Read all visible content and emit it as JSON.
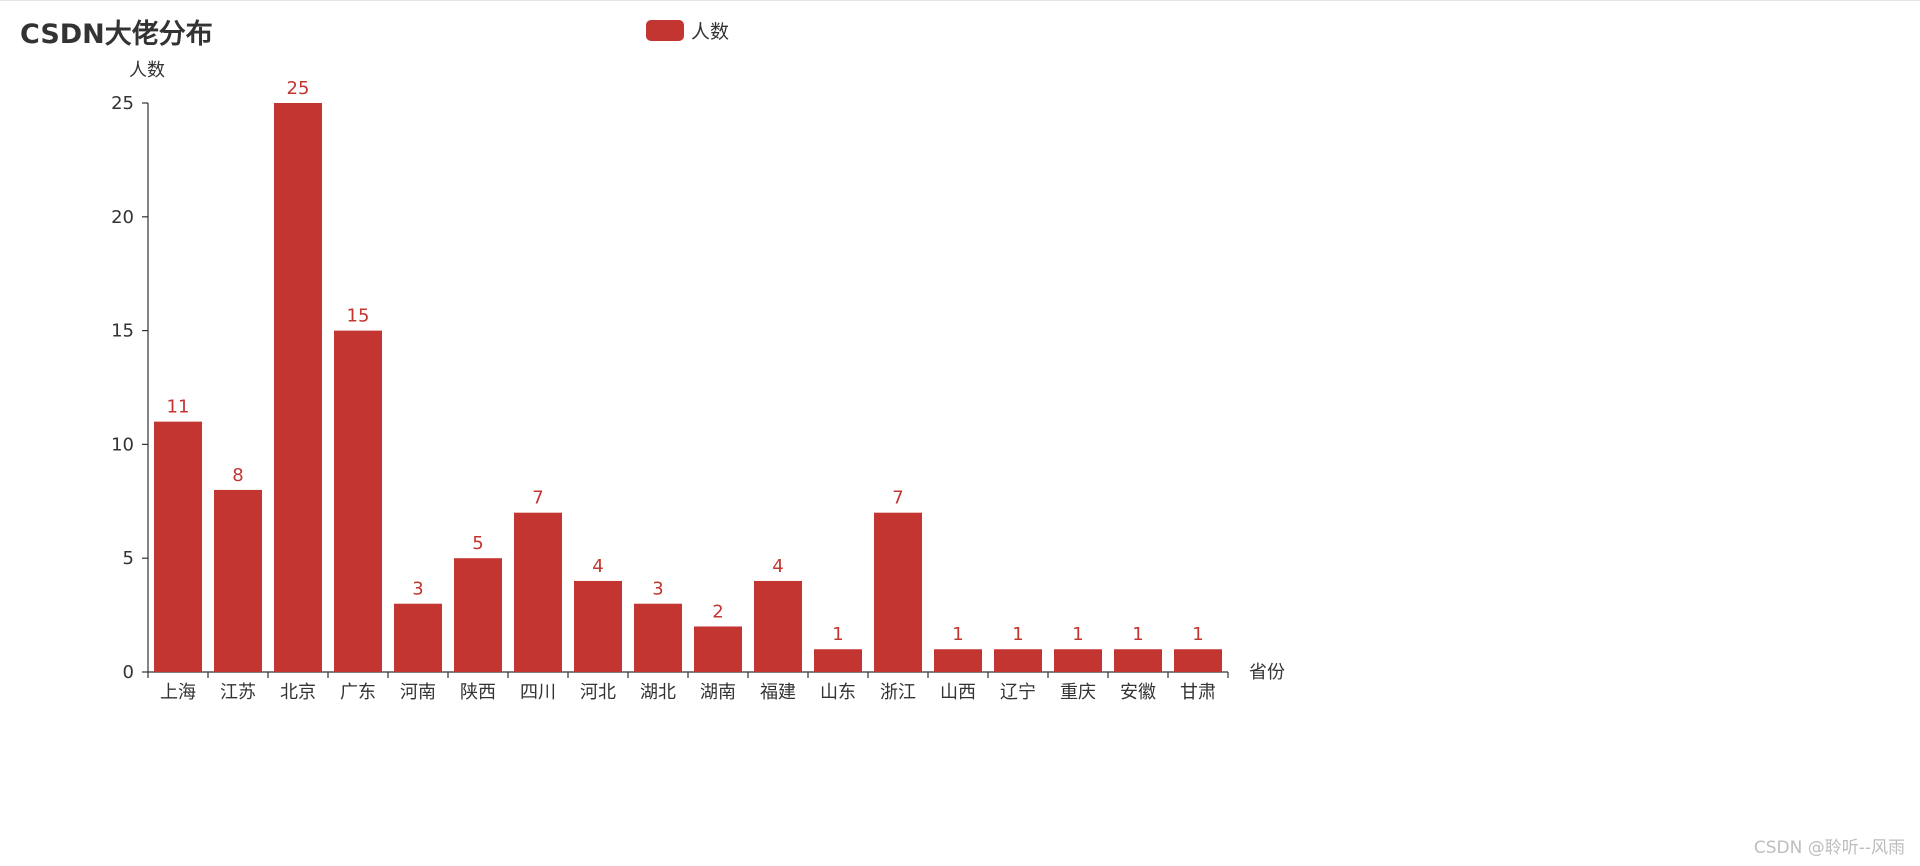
{
  "chart_data": {
    "type": "bar",
    "title": "CSDN大佬分布",
    "xlabel": "省份",
    "ylabel": "人数",
    "ylim": [
      0,
      25
    ],
    "yticks": [
      0,
      5,
      10,
      15,
      20,
      25
    ],
    "grid": false,
    "legend_position": "top-center",
    "categories": [
      "上海",
      "江苏",
      "北京",
      "广东",
      "河南",
      "陕西",
      "四川",
      "河北",
      "湖北",
      "湖南",
      "福建",
      "山东",
      "浙江",
      "山西",
      "辽宁",
      "重庆",
      "安徽",
      "甘肃"
    ],
    "series": [
      {
        "name": "人数",
        "values": [
          11,
          8,
          25,
          15,
          3,
          5,
          7,
          4,
          3,
          2,
          4,
          1,
          7,
          1,
          1,
          1,
          1,
          1
        ]
      }
    ]
  },
  "colors": {
    "bar": "#c23531",
    "axis": "#333333",
    "text": "#333333"
  },
  "watermark": "CSDN @聆听--风雨"
}
